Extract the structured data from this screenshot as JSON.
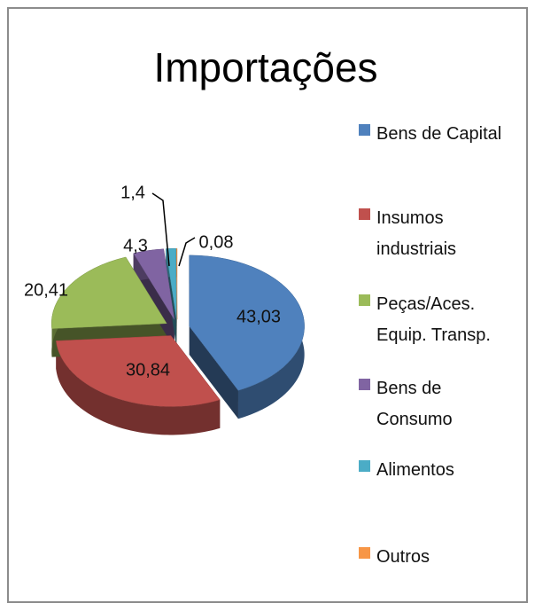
{
  "chart_data": {
    "type": "pie",
    "title": "Importações",
    "categories": [
      "Bens de Capital",
      "Insumos industriais",
      "Peças/Aces. Equip. Transp.",
      "Bens de Consumo",
      "Alimentos",
      "Outros"
    ],
    "values": [
      43.03,
      30.84,
      20.41,
      4.3,
      1.4,
      0.08
    ],
    "value_labels": [
      "43,03",
      "30,84",
      "20,41",
      "4,3",
      "1,4",
      "0,08"
    ],
    "colors": [
      "#4f81bd",
      "#c0504d",
      "#9bbb59",
      "#8064a2",
      "#4bacc6",
      "#f79646"
    ],
    "legend": "right"
  }
}
